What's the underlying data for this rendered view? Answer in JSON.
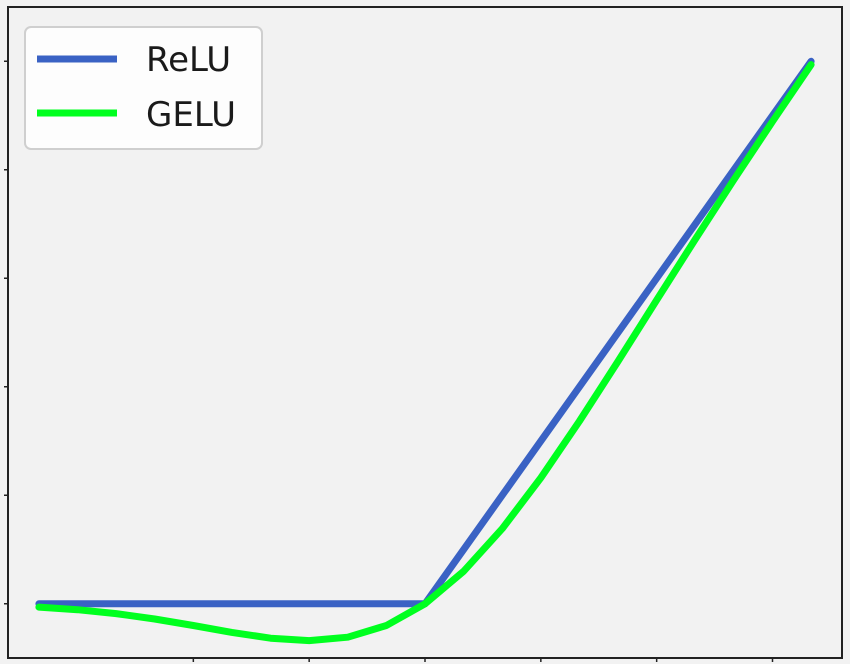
{
  "chart_data": {
    "type": "line",
    "title": "",
    "xlabel": "",
    "ylabel": "",
    "xlim": [
      -2.7,
      2.7
    ],
    "ylim": [
      -0.25,
      2.75
    ],
    "grid": false,
    "legend_position": "top-left",
    "series": [
      {
        "name": "ReLU",
        "color": "#3a62c4",
        "x": [
          -2.5,
          0,
          2.5
        ],
        "y": [
          0,
          0,
          2.5
        ]
      },
      {
        "name": "GELU",
        "color": "#00ff1f",
        "x": [
          -2.5,
          -2.25,
          -2,
          -1.75,
          -1.5,
          -1.25,
          -1,
          -0.75,
          -0.5,
          -0.25,
          0,
          0.25,
          0.5,
          0.75,
          1,
          1.25,
          1.5,
          1.75,
          2,
          2.25,
          2.5
        ],
        "y": [
          -0.0155,
          -0.0275,
          -0.0455,
          -0.0701,
          -0.1002,
          -0.1322,
          -0.1587,
          -0.17,
          -0.1543,
          -0.1003,
          0,
          0.1497,
          0.3457,
          0.58,
          0.8413,
          1.1178,
          1.3998,
          1.6799,
          1.9545,
          2.2225,
          2.4845
        ]
      }
    ]
  }
}
